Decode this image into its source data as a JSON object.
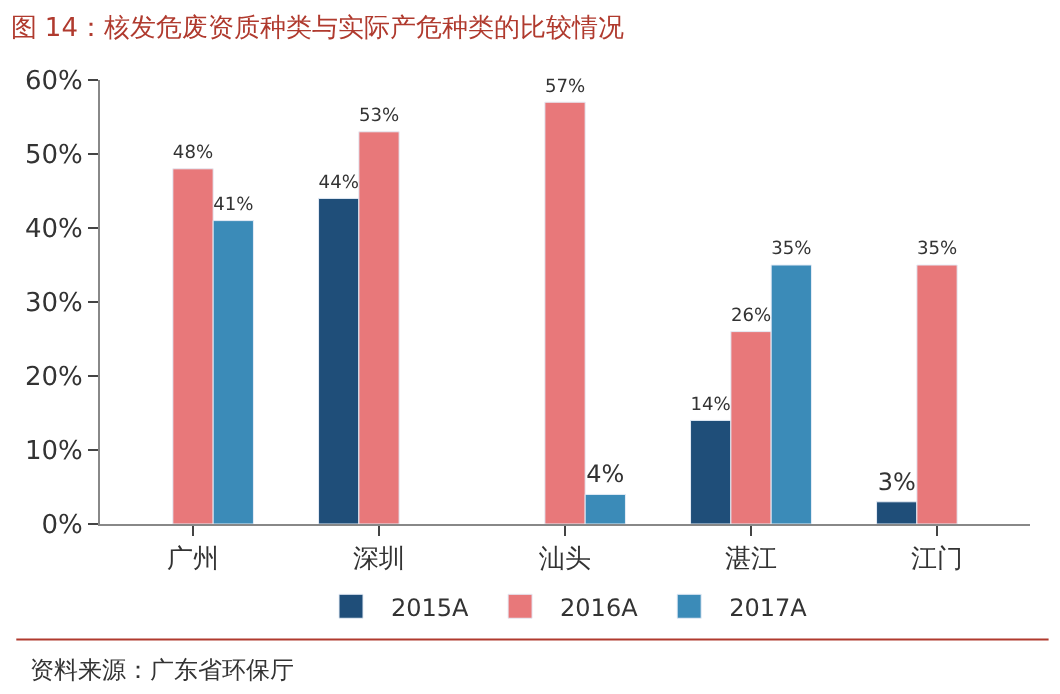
{
  "chart_data": {
    "type": "bar",
    "title": "图 14：核发危废资质种类与实际产危种类的比较情况",
    "categories": [
      "广州",
      "深圳",
      "汕头",
      "湛江",
      "江门"
    ],
    "series": [
      {
        "name": "2015A",
        "color": "#1f4e79",
        "values": [
          null,
          44,
          null,
          14,
          3
        ],
        "value_labels": [
          null,
          "44%",
          null,
          "14%",
          "3%"
        ]
      },
      {
        "name": "2016A",
        "color": "#e8787a",
        "values": [
          48,
          53,
          57,
          26,
          35
        ],
        "value_labels": [
          "48%",
          "53%",
          "57%",
          "26%",
          "35%"
        ]
      },
      {
        "name": "2017A",
        "color": "#3b8bb8",
        "values": [
          41,
          null,
          4,
          35,
          null
        ],
        "value_labels": [
          "41%",
          null,
          "4%",
          "35%",
          null
        ]
      }
    ],
    "ylim": [
      0,
      60
    ],
    "yticks": [
      {
        "value": 0,
        "label": "0%"
      },
      {
        "value": 10,
        "label": "10%"
      },
      {
        "value": 20,
        "label": "20%"
      },
      {
        "value": 30,
        "label": "30%"
      },
      {
        "value": 40,
        "label": "40%"
      },
      {
        "value": 50,
        "label": "50%"
      },
      {
        "value": 60,
        "label": "60%"
      }
    ],
    "legend": "bottom",
    "annotations": [
      "资料来源：广东省环保厅"
    ]
  }
}
